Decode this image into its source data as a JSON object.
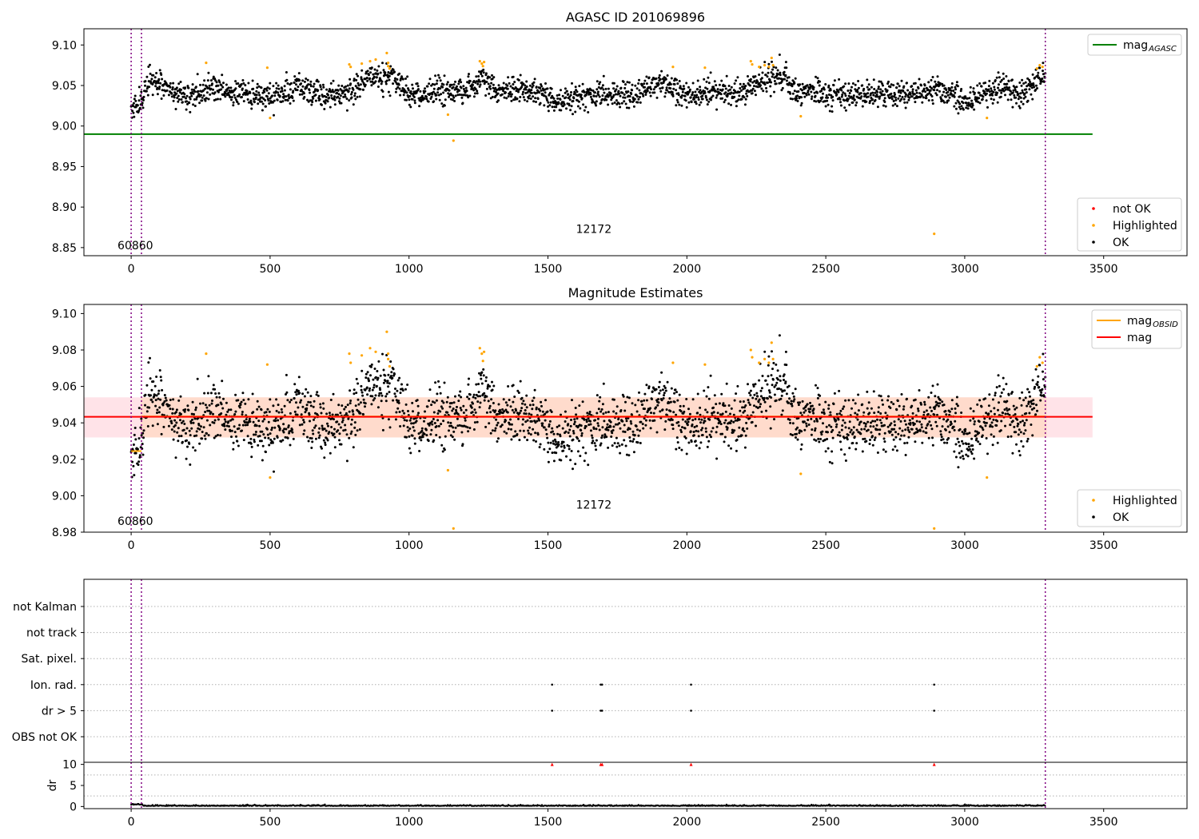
{
  "chart_data": [
    {
      "type": "scatter",
      "title": "AGASC ID 201069896",
      "xlim": [
        -170,
        3800
      ],
      "ylim": [
        8.84,
        9.12
      ],
      "x_ticks": [
        0,
        500,
        1000,
        1500,
        2000,
        2500,
        3000,
        3500
      ],
      "y_ticks": [
        "8.85",
        "8.90",
        "8.95",
        "9.00",
        "9.05",
        "9.10"
      ],
      "reference_line": {
        "name": "mag_AGASC",
        "y": 8.99,
        "x_range": [
          -170,
          3460
        ],
        "color": "#008000"
      },
      "vlines": [
        0,
        37,
        3290
      ],
      "annotations": [
        {
          "text": "60860",
          "x": 15,
          "y": 8.848
        },
        {
          "text": "12172",
          "x": 1665,
          "y": 8.868
        }
      ],
      "trend": {
        "x": [
          0,
          37,
          60,
          130,
          200,
          300,
          400,
          500,
          600,
          700,
          800,
          850,
          950,
          1000,
          1100,
          1200,
          1270,
          1300,
          1400,
          1500,
          1550,
          1600,
          1700,
          1800,
          1900,
          1950,
          2000,
          2100,
          2200,
          2300,
          2330,
          2400,
          2500,
          2600,
          2700,
          2800,
          2900,
          3000,
          3100,
          3150,
          3200,
          3290
        ],
        "y": [
          9.024,
          9.026,
          9.056,
          9.045,
          9.037,
          9.048,
          9.041,
          9.034,
          9.048,
          9.041,
          9.042,
          9.061,
          9.058,
          9.039,
          9.042,
          9.044,
          9.06,
          9.045,
          9.042,
          9.038,
          9.028,
          9.035,
          9.042,
          9.036,
          9.056,
          9.048,
          9.037,
          9.043,
          9.039,
          9.063,
          9.065,
          9.042,
          9.043,
          9.036,
          9.043,
          9.037,
          9.047,
          9.03,
          9.045,
          9.05,
          9.036,
          9.066
        ]
      },
      "noise": 0.008,
      "highlighted_points": [
        [
          270,
          9.078
        ],
        [
          490,
          9.072
        ],
        [
          500,
          9.01
        ],
        [
          785,
          9.076
        ],
        [
          790,
          9.073
        ],
        [
          830,
          9.077
        ],
        [
          860,
          9.08
        ],
        [
          880,
          9.082
        ],
        [
          920,
          9.09
        ],
        [
          925,
          9.078
        ],
        [
          925,
          9.074
        ],
        [
          930,
          9.071
        ],
        [
          1140,
          9.014
        ],
        [
          1160,
          8.982
        ],
        [
          1255,
          9.08
        ],
        [
          1262,
          9.077
        ],
        [
          1266,
          9.074
        ],
        [
          1270,
          9.079
        ],
        [
          1950,
          9.073
        ],
        [
          2065,
          9.072
        ],
        [
          2230,
          9.08
        ],
        [
          2235,
          9.076
        ],
        [
          2260,
          9.073
        ],
        [
          2280,
          9.075
        ],
        [
          2295,
          9.073
        ],
        [
          2305,
          9.084
        ],
        [
          2310,
          9.075
        ],
        [
          2410,
          9.012
        ],
        [
          2890,
          8.867
        ],
        [
          3080,
          9.01
        ],
        [
          3260,
          9.071
        ],
        [
          3270,
          9.075
        ],
        [
          3280,
          9.073
        ]
      ],
      "legends": [
        {
          "items": [
            {
              "label": "mag",
              "sub": "AGASC",
              "kind": "line",
              "color": "#008000"
            }
          ],
          "position": "upper right"
        },
        {
          "items": [
            {
              "label": "not OK",
              "kind": "dot",
              "color": "#ff0000"
            },
            {
              "label": "Highlighted",
              "kind": "dot",
              "color": "#ffa500"
            },
            {
              "label": "OK",
              "kind": "dot",
              "color": "#000000"
            }
          ],
          "position": "lower right"
        }
      ]
    },
    {
      "type": "scatter",
      "title": "Magnitude Estimates",
      "xlim": [
        -170,
        3800
      ],
      "ylim": [
        8.98,
        9.105
      ],
      "x_ticks": [
        0,
        500,
        1000,
        1500,
        2000,
        2500,
        3000,
        3500
      ],
      "y_ticks": [
        "8.98",
        "9.00",
        "9.02",
        "9.04",
        "9.06",
        "9.08",
        "9.10"
      ],
      "reference_line": {
        "name": "mag",
        "y": 9.0433,
        "x_range": [
          -170,
          3460
        ],
        "color": "#ff0000"
      },
      "band": {
        "y": [
          9.032,
          9.054
        ],
        "x_range": [
          -170,
          3460
        ],
        "color": "#ffc0cb",
        "color_inner": "#ffd9c7",
        "inner_x_range": [
          35,
          3295
        ]
      },
      "obsid_segments": [
        {
          "x": [
            0,
            37
          ],
          "y": 9.0245
        },
        {
          "x": [
            37,
            3290
          ],
          "y": 9.0435
        }
      ],
      "vlines": [
        0,
        37,
        3290
      ],
      "annotations": [
        {
          "text": "60860",
          "x": 15,
          "y": 8.984
        },
        {
          "text": "12172",
          "x": 1665,
          "y": 8.993
        }
      ],
      "highlighted_points": [
        [
          270,
          9.078
        ],
        [
          490,
          9.072
        ],
        [
          500,
          9.01
        ],
        [
          785,
          9.078
        ],
        [
          790,
          9.073
        ],
        [
          830,
          9.077
        ],
        [
          860,
          9.081
        ],
        [
          880,
          9.079
        ],
        [
          920,
          9.09
        ],
        [
          925,
          9.078
        ],
        [
          925,
          9.075
        ],
        [
          930,
          9.071
        ],
        [
          1140,
          9.014
        ],
        [
          1160,
          8.982
        ],
        [
          1255,
          9.081
        ],
        [
          1262,
          9.078
        ],
        [
          1266,
          9.074
        ],
        [
          1270,
          9.079
        ],
        [
          1950,
          9.073
        ],
        [
          2065,
          9.072
        ],
        [
          2230,
          9.08
        ],
        [
          2235,
          9.076
        ],
        [
          2260,
          9.073
        ],
        [
          2280,
          9.075
        ],
        [
          2295,
          9.073
        ],
        [
          2305,
          9.084
        ],
        [
          2310,
          9.075
        ],
        [
          2410,
          9.012
        ],
        [
          2890,
          8.982
        ],
        [
          3080,
          9.01
        ],
        [
          3260,
          9.071
        ],
        [
          3270,
          9.076
        ],
        [
          3280,
          9.073
        ]
      ],
      "legends": [
        {
          "items": [
            {
              "label": "mag",
              "sub": "OBSID",
              "kind": "line",
              "color": "#ffa500"
            },
            {
              "label": "mag",
              "kind": "line",
              "color": "#ff0000"
            }
          ],
          "position": "upper right"
        },
        {
          "items": [
            {
              "label": "Highlighted",
              "kind": "dot",
              "color": "#ffa500"
            },
            {
              "label": "OK",
              "kind": "dot",
              "color": "#000000"
            }
          ],
          "position": "lower right"
        }
      ]
    },
    {
      "type": "scatter",
      "title": "",
      "xlim": [
        -170,
        3800
      ],
      "categories": [
        "OBS not OK",
        "dr > 5",
        "Ion. rad.",
        "Sat. pixel.",
        "not track",
        "not Kalman"
      ],
      "flag_points": {
        "Ion. rad.": [
          1515,
          1690,
          1695,
          2015,
          2890
        ],
        "dr > 5": [
          1515,
          1690,
          1695,
          2015,
          2890
        ]
      },
      "vlines": [
        0,
        37,
        3290
      ]
    },
    {
      "type": "scatter",
      "title": "",
      "ylabel": "dr",
      "xlim": [
        -170,
        3800
      ],
      "ylim": [
        -0.5,
        10.5
      ],
      "x_ticks": [
        0,
        500,
        1000,
        1500,
        2000,
        2500,
        3000,
        3500
      ],
      "y_ticks": [
        "0",
        "5",
        "10"
      ],
      "clipped_points": [
        1515,
        1690,
        1695,
        2015,
        2890
      ],
      "vlines": [
        0,
        37,
        3290
      ]
    }
  ]
}
